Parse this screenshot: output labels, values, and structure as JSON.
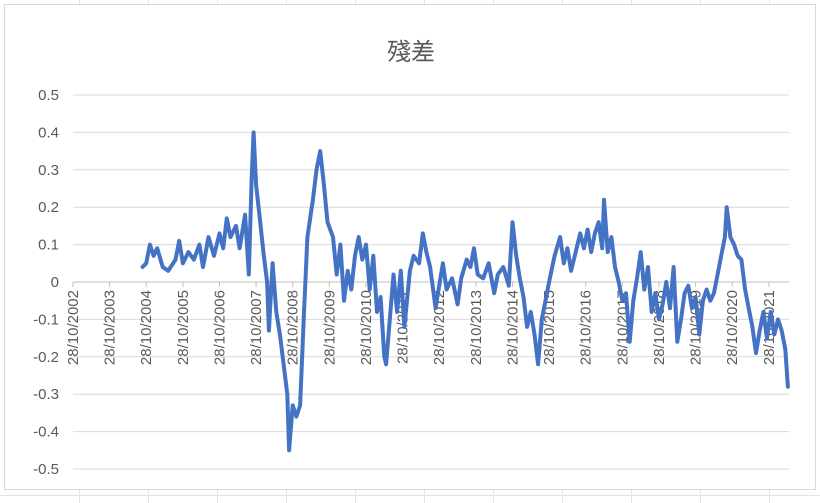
{
  "chart_data": {
    "type": "line",
    "title": "殘差",
    "xlabel": "",
    "ylabel": "",
    "ylim": [
      -0.5,
      0.5
    ],
    "y_ticks": [
      "0.5",
      "0.4",
      "0.3",
      "0.2",
      "0.1",
      "0",
      "-0.1",
      "-0.2",
      "-0.3",
      "-0.4",
      "-0.5"
    ],
    "x_tick_labels": [
      "28/10/2002",
      "28/10/2003",
      "28/10/2004",
      "28/10/2005",
      "28/10/2006",
      "28/10/2007",
      "28/10/2008",
      "28/10/2009",
      "28/10/2010",
      "28/10/2011",
      "28/10/2012",
      "28/10/2013",
      "28/10/2014",
      "28/10/2015",
      "28/10/2016",
      "28/10/2017",
      "28/10/2018",
      "28/10/2019",
      "28/10/2020",
      "28/10/2021"
    ],
    "grid": true,
    "legend": "none",
    "series": [
      {
        "color": "#4472C4",
        "points": [
          [
            2003.9,
            0.04
          ],
          [
            2004.0,
            0.05
          ],
          [
            2004.1,
            0.1
          ],
          [
            2004.2,
            0.07
          ],
          [
            2004.3,
            0.09
          ],
          [
            2004.45,
            0.04
          ],
          [
            2004.6,
            0.03
          ],
          [
            2004.8,
            0.06
          ],
          [
            2004.9,
            0.11
          ],
          [
            2005.0,
            0.05
          ],
          [
            2005.15,
            0.08
          ],
          [
            2005.3,
            0.06
          ],
          [
            2005.45,
            0.1
          ],
          [
            2005.55,
            0.04
          ],
          [
            2005.7,
            0.12
          ],
          [
            2005.85,
            0.07
          ],
          [
            2006.0,
            0.13
          ],
          [
            2006.1,
            0.09
          ],
          [
            2006.2,
            0.17
          ],
          [
            2006.3,
            0.12
          ],
          [
            2006.45,
            0.15
          ],
          [
            2006.55,
            0.09
          ],
          [
            2006.7,
            0.18
          ],
          [
            2006.8,
            0.02
          ],
          [
            2006.88,
            0.28
          ],
          [
            2006.93,
            0.4
          ],
          [
            2007.0,
            0.26
          ],
          [
            2007.1,
            0.17
          ],
          [
            2007.2,
            0.08
          ],
          [
            2007.3,
            0.0
          ],
          [
            2007.35,
            -0.13
          ],
          [
            2007.45,
            0.05
          ],
          [
            2007.55,
            -0.08
          ],
          [
            2007.65,
            -0.14
          ],
          [
            2007.75,
            -0.22
          ],
          [
            2007.85,
            -0.3
          ],
          [
            2007.9,
            -0.45
          ],
          [
            2008.0,
            -0.33
          ],
          [
            2008.1,
            -0.36
          ],
          [
            2008.2,
            -0.33
          ],
          [
            2008.3,
            -0.1
          ],
          [
            2008.4,
            0.12
          ],
          [
            2008.55,
            0.22
          ],
          [
            2008.65,
            0.3
          ],
          [
            2008.75,
            0.35
          ],
          [
            2008.85,
            0.26
          ],
          [
            2008.95,
            0.16
          ],
          [
            2009.1,
            0.12
          ],
          [
            2009.2,
            0.02
          ],
          [
            2009.3,
            0.1
          ],
          [
            2009.4,
            -0.05
          ],
          [
            2009.5,
            0.03
          ],
          [
            2009.6,
            -0.02
          ],
          [
            2009.7,
            0.07
          ],
          [
            2009.8,
            0.12
          ],
          [
            2009.9,
            0.06
          ],
          [
            2010.0,
            0.1
          ],
          [
            2010.1,
            -0.02
          ],
          [
            2010.2,
            0.07
          ],
          [
            2010.3,
            -0.08
          ],
          [
            2010.4,
            -0.04
          ],
          [
            2010.5,
            -0.2
          ],
          [
            2010.55,
            -0.22
          ],
          [
            2010.65,
            -0.1
          ],
          [
            2010.75,
            0.02
          ],
          [
            2010.85,
            -0.08
          ],
          [
            2010.95,
            0.03
          ],
          [
            2011.05,
            -0.12
          ],
          [
            2011.2,
            0.03
          ],
          [
            2011.3,
            0.07
          ],
          [
            2011.45,
            0.05
          ],
          [
            2011.55,
            0.13
          ],
          [
            2011.65,
            0.08
          ],
          [
            2011.75,
            0.04
          ],
          [
            2011.9,
            -0.07
          ],
          [
            2012.0,
            -0.01
          ],
          [
            2012.1,
            0.05
          ],
          [
            2012.2,
            -0.02
          ],
          [
            2012.35,
            0.01
          ],
          [
            2012.5,
            -0.06
          ],
          [
            2012.6,
            0.01
          ],
          [
            2012.75,
            0.06
          ],
          [
            2012.85,
            0.04
          ],
          [
            2012.95,
            0.09
          ],
          [
            2013.05,
            0.02
          ],
          [
            2013.2,
            0.01
          ],
          [
            2013.35,
            0.05
          ],
          [
            2013.5,
            -0.03
          ],
          [
            2013.6,
            0.02
          ],
          [
            2013.75,
            0.04
          ],
          [
            2013.9,
            -0.01
          ],
          [
            2014.0,
            0.16
          ],
          [
            2014.1,
            0.07
          ],
          [
            2014.2,
            0.01
          ],
          [
            2014.3,
            -0.04
          ],
          [
            2014.4,
            -0.12
          ],
          [
            2014.5,
            -0.08
          ],
          [
            2014.6,
            -0.14
          ],
          [
            2014.7,
            -0.22
          ],
          [
            2014.8,
            -0.1
          ],
          [
            2014.9,
            -0.05
          ],
          [
            2015.0,
            0.0
          ],
          [
            2015.15,
            0.07
          ],
          [
            2015.3,
            0.12
          ],
          [
            2015.4,
            0.05
          ],
          [
            2015.5,
            0.09
          ],
          [
            2015.6,
            0.03
          ],
          [
            2015.75,
            0.09
          ],
          [
            2015.85,
            0.13
          ],
          [
            2015.95,
            0.09
          ],
          [
            2016.05,
            0.14
          ],
          [
            2016.15,
            0.08
          ],
          [
            2016.25,
            0.13
          ],
          [
            2016.35,
            0.16
          ],
          [
            2016.45,
            0.09
          ],
          [
            2016.5,
            0.22
          ],
          [
            2016.6,
            0.08
          ],
          [
            2016.7,
            0.12
          ],
          [
            2016.8,
            0.04
          ],
          [
            2016.9,
            0.0
          ],
          [
            2017.0,
            -0.05
          ],
          [
            2017.1,
            -0.03
          ],
          [
            2017.2,
            -0.16
          ],
          [
            2017.3,
            -0.05
          ],
          [
            2017.4,
            0.01
          ],
          [
            2017.5,
            0.08
          ],
          [
            2017.6,
            -0.02
          ],
          [
            2017.7,
            0.04
          ],
          [
            2017.8,
            -0.08
          ],
          [
            2017.9,
            -0.03
          ],
          [
            2018.0,
            -0.1
          ],
          [
            2018.1,
            -0.06
          ],
          [
            2018.2,
            0.0
          ],
          [
            2018.3,
            -0.07
          ],
          [
            2018.4,
            0.04
          ],
          [
            2018.5,
            -0.16
          ],
          [
            2018.6,
            -0.1
          ],
          [
            2018.7,
            -0.03
          ],
          [
            2018.8,
            -0.01
          ],
          [
            2018.9,
            -0.07
          ],
          [
            2019.0,
            -0.04
          ],
          [
            2019.1,
            -0.14
          ],
          [
            2019.2,
            -0.05
          ],
          [
            2019.3,
            -0.02
          ],
          [
            2019.4,
            -0.05
          ],
          [
            2019.5,
            -0.03
          ],
          [
            2019.6,
            0.02
          ],
          [
            2019.7,
            0.07
          ],
          [
            2019.8,
            0.12
          ],
          [
            2019.85,
            0.2
          ],
          [
            2019.95,
            0.12
          ],
          [
            2020.05,
            0.1
          ],
          [
            2020.15,
            0.07
          ],
          [
            2020.25,
            0.06
          ],
          [
            2020.35,
            -0.02
          ],
          [
            2020.45,
            -0.07
          ],
          [
            2020.55,
            -0.12
          ],
          [
            2020.65,
            -0.19
          ],
          [
            2020.75,
            -0.13
          ],
          [
            2020.85,
            -0.08
          ],
          [
            2020.95,
            -0.15
          ],
          [
            2021.05,
            -0.08
          ],
          [
            2021.15,
            -0.14
          ],
          [
            2021.25,
            -0.1
          ],
          [
            2021.35,
            -0.13
          ],
          [
            2021.45,
            -0.18
          ],
          [
            2021.52,
            -0.28
          ]
        ]
      }
    ]
  }
}
